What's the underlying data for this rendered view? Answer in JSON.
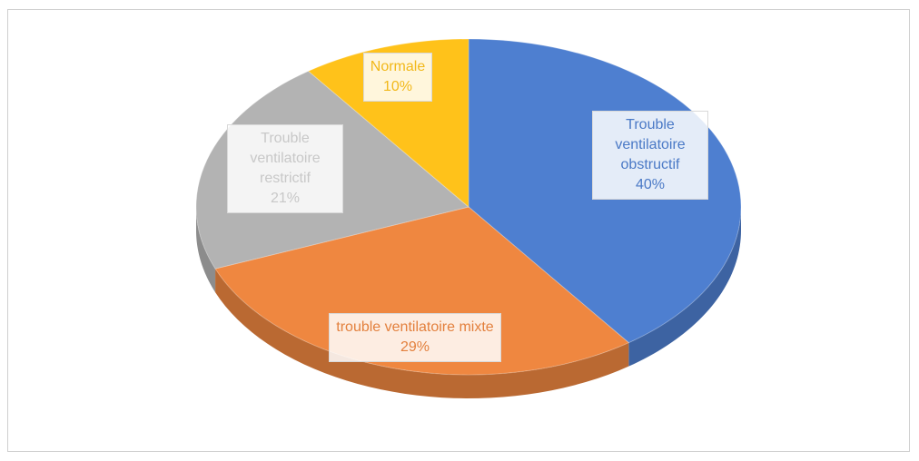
{
  "chart_data": {
    "type": "pie",
    "categories": [
      "Trouble ventilatoire obstructif",
      "trouble ventilatoire mixte",
      "Trouble ventilatoire restrictif",
      "Normale"
    ],
    "values": [
      40,
      29,
      21,
      10
    ],
    "value_labels": [
      "40%",
      "29%",
      "21%",
      "10%"
    ],
    "colors": [
      "#4e7fd0",
      "#ef8740",
      "#b3b3b3",
      "#ffc21a"
    ]
  }
}
